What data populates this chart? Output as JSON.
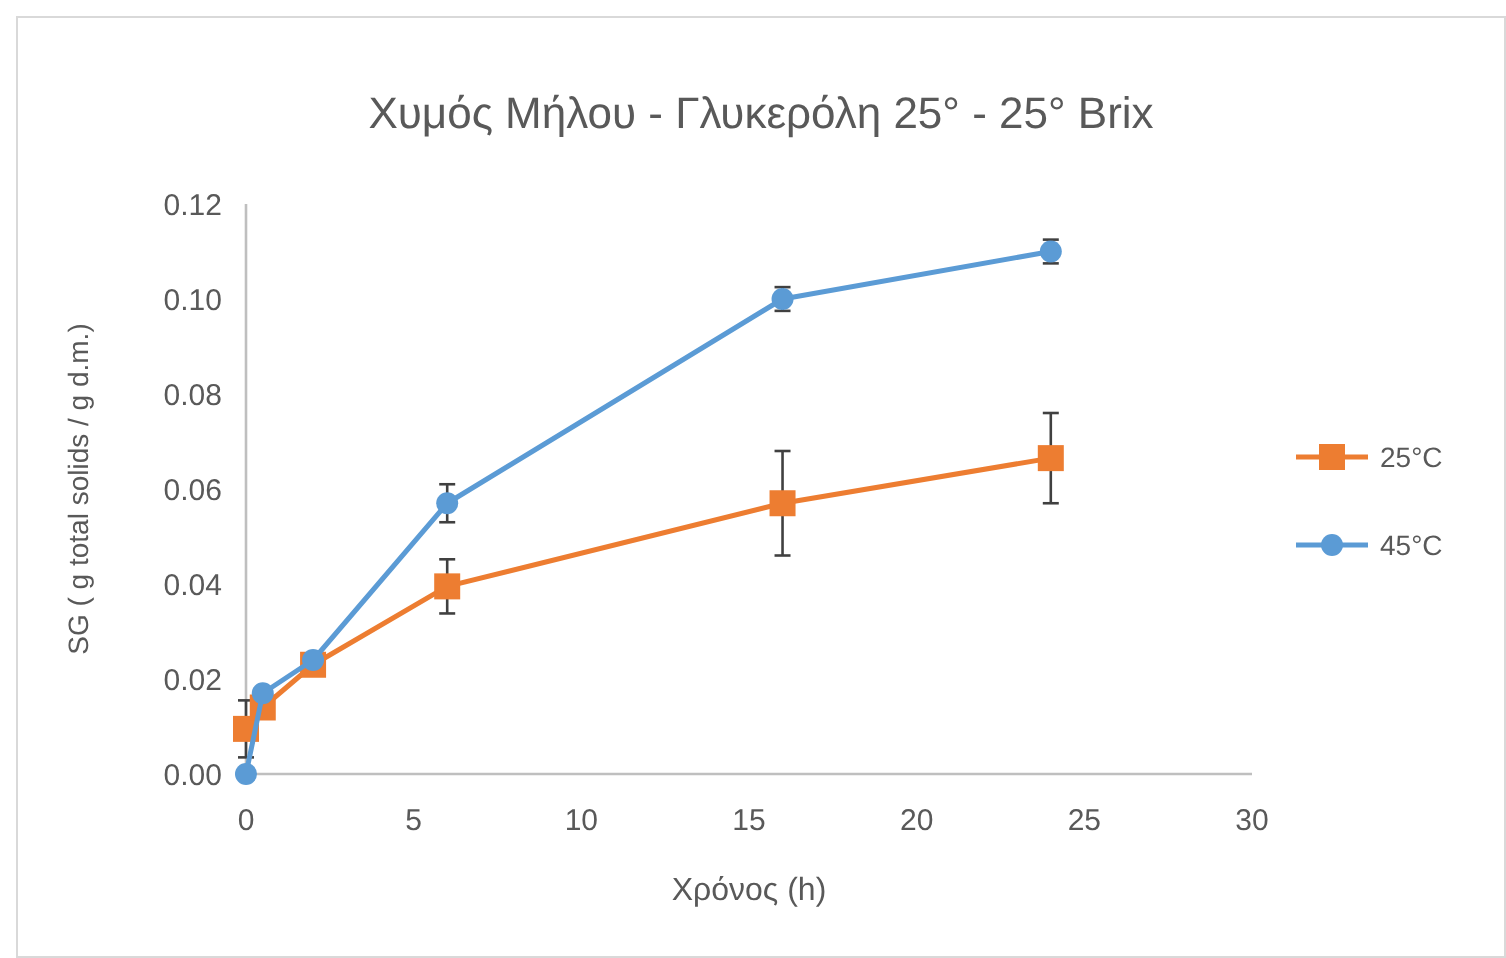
{
  "chart_data": {
    "type": "line",
    "title": "Χυμός Μήλου - Γλυκερόλη 25° - 25° Brix",
    "xlabel": "Χρόνος (h)",
    "ylabel": "SG ( g total solids / g d.m.)",
    "xlim": [
      0,
      30
    ],
    "xticks": [
      0,
      5,
      10,
      15,
      20,
      25,
      30
    ],
    "ylim": [
      0,
      0.12
    ],
    "yticks": [
      {
        "value": 0,
        "label": "0.00"
      },
      {
        "value": 0.02,
        "label": "0.02"
      },
      {
        "value": 0.04,
        "label": "0.04"
      },
      {
        "value": 0.06,
        "label": "0.06"
      },
      {
        "value": 0.08,
        "label": "0.08"
      },
      {
        "value": 0.1,
        "label": "0.10"
      },
      {
        "value": 0.12,
        "label": "0.12"
      }
    ],
    "grid": false,
    "legend": "right",
    "series": [
      {
        "name": "25°C",
        "color": "#ed7d31",
        "marker": "square",
        "x": [
          0,
          0.5,
          2,
          6,
          16,
          24
        ],
        "values": [
          0.0095,
          0.014,
          0.023,
          0.0395,
          0.057,
          0.0665
        ],
        "errors": [
          0.006,
          null,
          null,
          0.0057,
          0.011,
          0.0095
        ]
      },
      {
        "name": "45°C",
        "color": "#5b9bd5",
        "marker": "circle",
        "x": [
          0,
          0.5,
          2,
          6,
          16,
          24
        ],
        "values": [
          0,
          0.017,
          0.024,
          0.057,
          0.1,
          0.11
        ],
        "errors": [
          null,
          null,
          null,
          0.004,
          0.0025,
          0.0025
        ]
      }
    ]
  }
}
